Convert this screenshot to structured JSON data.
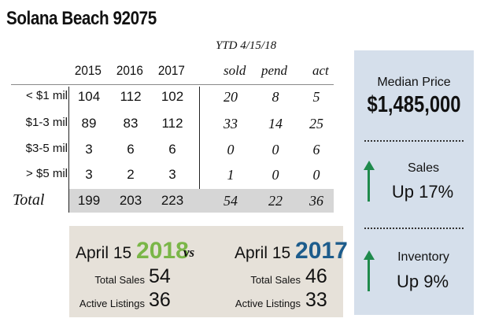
{
  "title": "Solana Beach 92075",
  "ytd_label": "YTD 4/15/18",
  "columns": {
    "years": [
      "2015",
      "2016",
      "2017"
    ],
    "ytd": [
      "sold",
      "pend",
      "act"
    ]
  },
  "rows": [
    {
      "label": "< $1 mil",
      "years": [
        "104",
        "112",
        "102"
      ],
      "ytd": [
        "20",
        "8",
        "5"
      ]
    },
    {
      "label": "$1-3 mil",
      "years": [
        "89",
        "83",
        "112"
      ],
      "ytd": [
        "33",
        "14",
        "25"
      ]
    },
    {
      "label": "$3-5 mil",
      "years": [
        "3",
        "6",
        "6"
      ],
      "ytd": [
        "0",
        "0",
        "6"
      ]
    },
    {
      "label": "> $5 mil",
      "years": [
        "3",
        "2",
        "3"
      ],
      "ytd": [
        "1",
        "0",
        "0"
      ]
    }
  ],
  "total": {
    "label": "Total",
    "years": [
      "199",
      "203",
      "223"
    ],
    "ytd": [
      "54",
      "22",
      "36"
    ]
  },
  "comparison": {
    "vs": "vs",
    "left": {
      "date": "April 15",
      "year": "2018",
      "year_color": "#7ab648",
      "sales_label": "Total Sales",
      "sales": "54",
      "listings_label": "Active Listings",
      "listings": "36"
    },
    "right": {
      "date": "April 15",
      "year": "2017",
      "year_color": "#1d5c8c",
      "sales_label": "Total Sales",
      "sales": "46",
      "listings_label": "Active Listings",
      "listings": "33"
    }
  },
  "side_panel": {
    "median_label": "Median Price",
    "median_value": "$1,485,000",
    "sales_label": "Sales",
    "sales_value": "Up 17%",
    "inventory_label": "Inventory",
    "inventory_value": "Up 9%",
    "arrow_color": "#1f8a4c"
  }
}
